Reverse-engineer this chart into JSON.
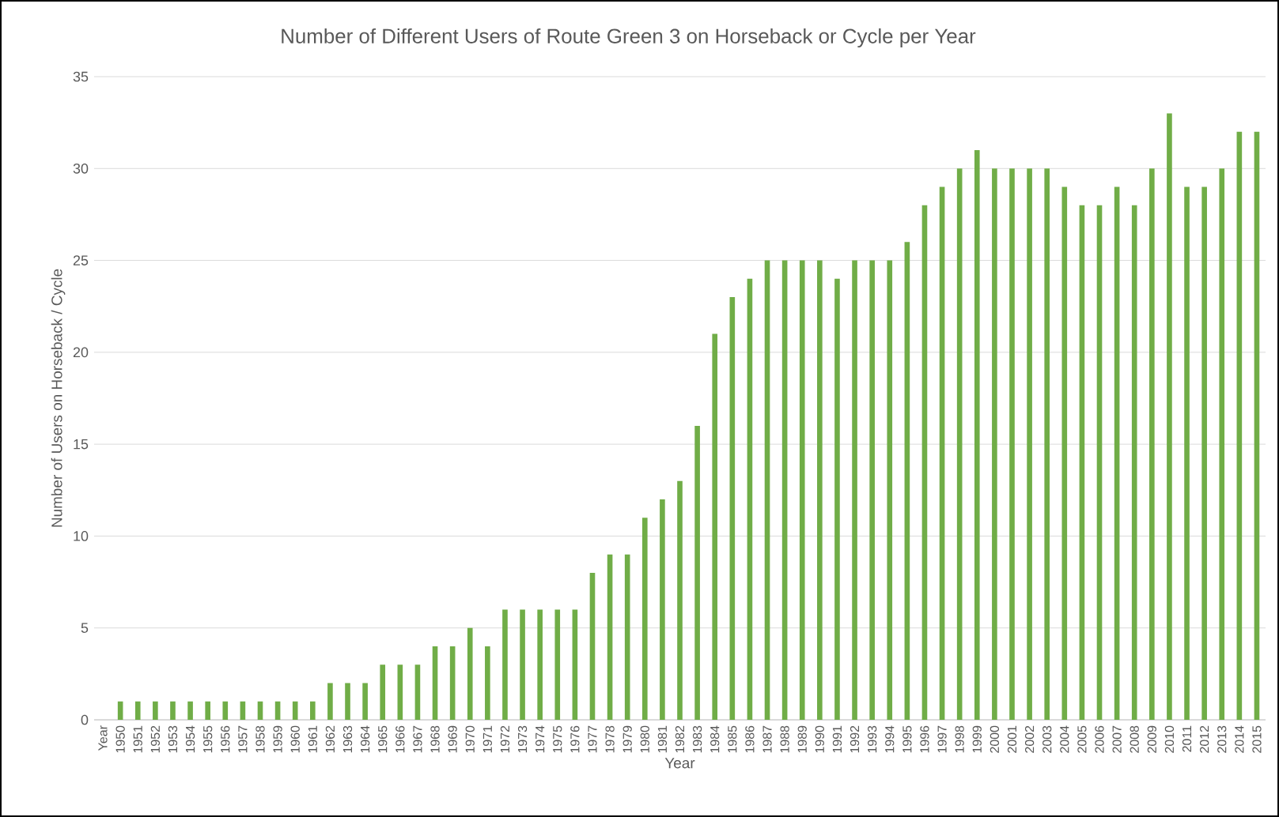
{
  "chart_data": {
    "type": "bar",
    "title": "Number of Different Users of Route Green 3 on Horseback or Cycle per Year",
    "xlabel": "Year",
    "ylabel": "Number of Users on Horseback / Cycle",
    "categories": [
      "Year",
      "1950",
      "1951",
      "1952",
      "1953",
      "1954",
      "1955",
      "1956",
      "1957",
      "1958",
      "1959",
      "1960",
      "1961",
      "1962",
      "1963",
      "1964",
      "1965",
      "1966",
      "1967",
      "1968",
      "1969",
      "1970",
      "1971",
      "1972",
      "1973",
      "1974",
      "1975",
      "1976",
      "1977",
      "1978",
      "1979",
      "1980",
      "1981",
      "1982",
      "1983",
      "1984",
      "1985",
      "1986",
      "1987",
      "1988",
      "1989",
      "1990",
      "1991",
      "1992",
      "1993",
      "1994",
      "1995",
      "1996",
      "1997",
      "1998",
      "1999",
      "2000",
      "2001",
      "2002",
      "2003",
      "2004",
      "2005",
      "2006",
      "2007",
      "2008",
      "2009",
      "2010",
      "2011",
      "2012",
      "2013",
      "2014",
      "2015"
    ],
    "values": [
      null,
      1,
      1,
      1,
      1,
      1,
      1,
      1,
      1,
      1,
      1,
      1,
      1,
      2,
      2,
      2,
      3,
      3,
      3,
      4,
      4,
      5,
      4,
      6,
      6,
      6,
      6,
      6,
      8,
      9,
      9,
      11,
      12,
      13,
      16,
      21,
      23,
      24,
      25,
      25,
      25,
      25,
      24,
      25,
      25,
      25,
      26,
      28,
      29,
      30,
      31,
      30,
      30,
      30,
      30,
      29,
      28,
      28,
      29,
      28,
      30,
      33,
      29,
      29,
      30,
      32,
      32
    ],
    "color": "#70ad47",
    "ylim": [
      0,
      35
    ],
    "yticks": [
      0,
      5,
      10,
      15,
      20,
      25,
      30,
      35
    ],
    "grid": "y"
  }
}
